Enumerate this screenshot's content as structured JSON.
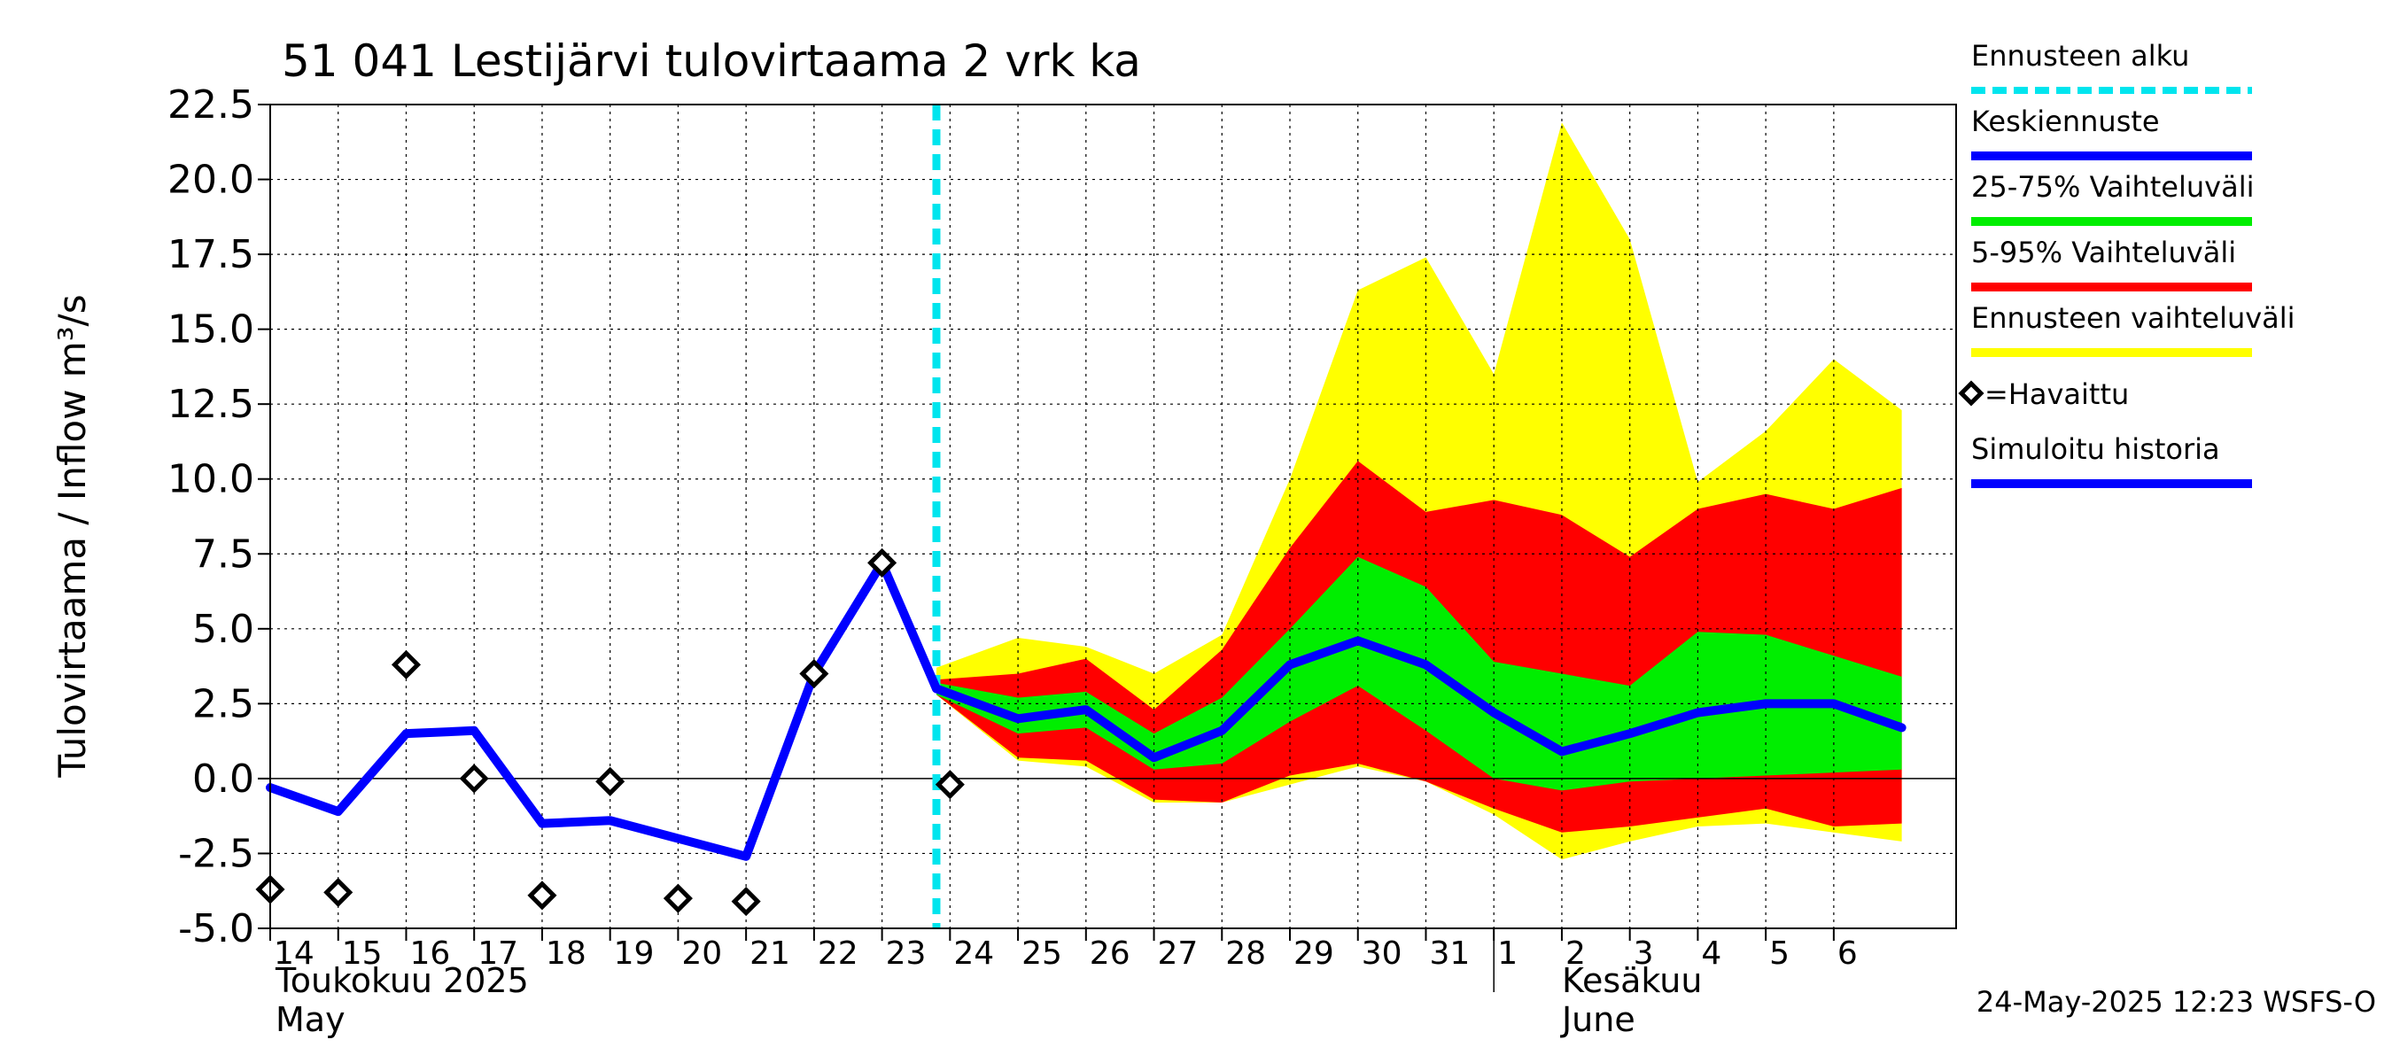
{
  "chart_data": {
    "type": "area",
    "title": "51 041 Lestijärvi tulovirtaama 2 vrk ka",
    "ylabel": "Tulovirtaama / Inflow    m³/s",
    "ylim": [
      -5.0,
      22.5
    ],
    "yticks": [
      "22.5",
      "20.0",
      "17.5",
      "15.0",
      "12.5",
      "10.0",
      "7.5",
      "5.0",
      "2.5",
      "0.0",
      "-2.5",
      "-5.0"
    ],
    "x_day_labels": [
      "14",
      "15",
      "16",
      "17",
      "18",
      "19",
      "20",
      "21",
      "22",
      "23",
      "24",
      "25",
      "26",
      "27",
      "28",
      "29",
      "30",
      "31",
      "1",
      "2",
      "3",
      "4",
      "5",
      "6"
    ],
    "month_labels": [
      {
        "line1": "Toukokuu  2025",
        "line2": "May"
      },
      {
        "line1": "Kesäkuu",
        "line2": "June"
      }
    ],
    "forecast_start_day": 23.8,
    "timestamp": "24-May-2025 12:23 WSFS-O",
    "series": [
      {
        "name": "Simuloitu historia",
        "color": "#0000ff",
        "x": [
          14,
          15,
          16,
          17,
          18,
          19,
          20,
          21,
          22,
          23,
          23.8
        ],
        "y": [
          -0.3,
          -1.1,
          1.5,
          1.6,
          -1.5,
          -1.4,
          -2.0,
          -2.6,
          3.5,
          7.2,
          3.0
        ]
      },
      {
        "name": "Keskiennuste",
        "color": "#0000ff",
        "x": [
          23.8,
          25,
          26,
          27,
          28,
          29,
          30,
          31,
          32,
          33,
          34,
          35,
          36,
          37,
          38
        ],
        "y": [
          3.0,
          2.0,
          2.3,
          0.7,
          1.6,
          3.8,
          4.6,
          3.8,
          2.2,
          0.9,
          1.5,
          2.2,
          2.5,
          2.5,
          1.7
        ]
      }
    ],
    "bands": [
      {
        "name": "Ennusteen vaihteluväli",
        "color": "#ffff00",
        "x": [
          23.8,
          25,
          26,
          27,
          28,
          29,
          30,
          31,
          32,
          33,
          34,
          35,
          36,
          37,
          38
        ],
        "upper": [
          3.7,
          4.7,
          4.4,
          3.5,
          4.8,
          10.0,
          16.3,
          17.4,
          13.5,
          21.9,
          18.0,
          9.9,
          11.6,
          14.0,
          12.3
        ],
        "lower": [
          2.8,
          0.6,
          0.4,
          -0.8,
          -0.8,
          -0.2,
          0.4,
          -0.1,
          -1.2,
          -2.7,
          -2.1,
          -1.6,
          -1.5,
          -1.8,
          -2.1
        ]
      },
      {
        "name": "5-95% Vaihteluväli",
        "color": "#ff0000",
        "x": [
          23.8,
          25,
          26,
          27,
          28,
          29,
          30,
          31,
          32,
          33,
          34,
          35,
          36,
          37,
          38
        ],
        "upper": [
          3.3,
          3.5,
          4.0,
          2.3,
          4.3,
          7.7,
          10.6,
          8.9,
          9.3,
          8.8,
          7.4,
          9.0,
          9.5,
          9.0,
          9.7
        ],
        "lower": [
          2.8,
          0.7,
          0.6,
          -0.7,
          -0.8,
          0.1,
          0.5,
          -0.1,
          -1.0,
          -1.8,
          -1.6,
          -1.3,
          -1.0,
          -1.6,
          -1.5
        ]
      },
      {
        "name": "25-75% Vaihteluväli",
        "color": "#00ee00",
        "x": [
          23.8,
          25,
          26,
          27,
          28,
          29,
          30,
          31,
          32,
          33,
          34,
          35,
          36,
          37,
          38
        ],
        "upper": [
          3.2,
          2.7,
          2.9,
          1.5,
          2.7,
          5.0,
          7.4,
          6.4,
          3.9,
          3.5,
          3.1,
          4.9,
          4.8,
          4.1,
          3.4
        ],
        "lower": [
          2.8,
          1.5,
          1.7,
          0.3,
          0.5,
          1.9,
          3.1,
          1.6,
          0.0,
          -0.4,
          -0.1,
          0.0,
          0.1,
          0.2,
          0.3
        ]
      }
    ],
    "observed": {
      "name": "Havaittu",
      "x": [
        14,
        15,
        16,
        17,
        18,
        19,
        20,
        21,
        22,
        23,
        24
      ],
      "y": [
        -3.7,
        -3.8,
        3.8,
        0.0,
        -3.9,
        -0.1,
        -4.0,
        -4.1,
        3.5,
        7.2,
        -0.2
      ]
    }
  },
  "legend": {
    "items": [
      {
        "label": "Ennusteen alku",
        "color": "#00e5ee",
        "style": "dashed"
      },
      {
        "label": "Keskiennuste",
        "color": "#0000ff",
        "style": "line"
      },
      {
        "label": "25-75% Vaihteluväli",
        "color": "#00ee00",
        "style": "line"
      },
      {
        "label": "5-95% Vaihteluväli",
        "color": "#ff0000",
        "style": "line"
      },
      {
        "label": "Ennusteen vaihteluväli",
        "color": "#ffff00",
        "style": "line"
      },
      {
        "label": "=Havaittu",
        "color": "#000000",
        "style": "marker"
      },
      {
        "label": "Simuloitu historia",
        "color": "#0000ff",
        "style": "line"
      }
    ]
  }
}
